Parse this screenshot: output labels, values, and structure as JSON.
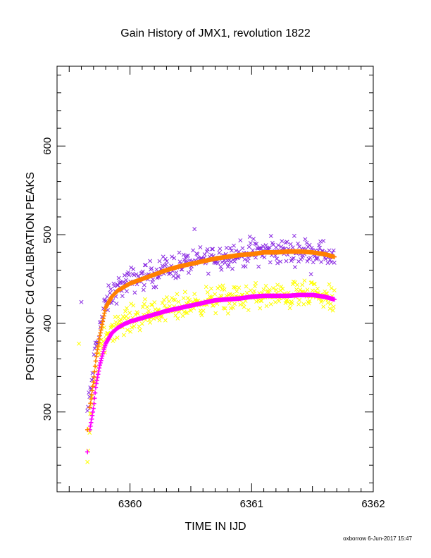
{
  "chart_data": {
    "type": "scatter",
    "title": "Gain History of JMX1, revolution 1822",
    "xlabel": "TIME IN IJD",
    "ylabel": "POSITION OF Cd CALIBRATION PEAKS",
    "xlim": [
      6359.4,
      6362.0
    ],
    "ylim": [
      210,
      690
    ],
    "x_ticks": [
      6360,
      6361,
      6362
    ],
    "y_ticks": [
      300,
      400,
      500,
      600
    ],
    "x_tick_labels": [
      "6360",
      "6361",
      "6362"
    ],
    "y_tick_labels": [
      "300",
      "400",
      "500",
      "600"
    ],
    "grid": false,
    "legend": "none",
    "series": [
      {
        "marker": "x",
        "color": "#8a2be2",
        "noise": 9,
        "x": [
          6359.6,
          6359.65,
          6359.67,
          6359.7,
          6359.72,
          6359.75,
          6359.78,
          6359.8,
          6359.85,
          6359.9,
          6360.0,
          6360.1,
          6360.2,
          6360.3,
          6360.4,
          6360.5,
          6360.6,
          6360.7,
          6360.8,
          6360.9,
          6361.0,
          6361.1,
          6361.2,
          6361.3,
          6361.4,
          6361.5,
          6361.6,
          6361.68
        ],
        "y": [
          424,
          300,
          318,
          350,
          375,
          395,
          410,
          422,
          432,
          440,
          448,
          452,
          457,
          462,
          466,
          469,
          472,
          475,
          477,
          478,
          480,
          481,
          481,
          482,
          482,
          481,
          479,
          476
        ]
      },
      {
        "marker": "x",
        "color": "#ffff00",
        "noise": 9,
        "x": [
          6359.58,
          6359.65,
          6359.67,
          6359.7,
          6359.72,
          6359.75,
          6359.78,
          6359.8,
          6359.85,
          6359.9,
          6360.0,
          6360.1,
          6360.2,
          6360.3,
          6360.4,
          6360.5,
          6360.6,
          6360.7,
          6360.8,
          6360.9,
          6361.0,
          6361.1,
          6361.2,
          6361.3,
          6361.4,
          6361.5,
          6361.6,
          6361.68
        ],
        "y": [
          377,
          245,
          285,
          320,
          345,
          365,
          378,
          386,
          395,
          400,
          405,
          408,
          412,
          416,
          419,
          422,
          425,
          427,
          428,
          429,
          430,
          431,
          430,
          431,
          432,
          431,
          429,
          424
        ]
      },
      {
        "marker": "+",
        "color": "#ff00ff",
        "noise": 0,
        "x": [
          6359.65,
          6359.67,
          6359.7,
          6359.72,
          6359.75,
          6359.78,
          6359.8,
          6359.85,
          6359.9,
          6359.95,
          6360.0,
          6360.1,
          6360.2,
          6360.3,
          6360.4,
          6360.5,
          6360.6,
          6360.7,
          6360.8,
          6360.9,
          6361.0,
          6361.1,
          6361.2,
          6361.3,
          6361.4,
          6361.5,
          6361.6,
          6361.68
        ],
        "y": [
          255,
          280,
          305,
          330,
          352,
          368,
          377,
          389,
          395,
          399,
          402,
          406,
          410,
          414,
          417,
          420,
          423,
          426,
          427,
          428,
          430,
          431,
          431,
          431,
          432,
          432,
          430,
          427
        ]
      },
      {
        "marker": "+",
        "color": "#ff8000",
        "noise": 0,
        "x": [
          6359.65,
          6359.67,
          6359.7,
          6359.72,
          6359.75,
          6359.78,
          6359.8,
          6359.85,
          6359.9,
          6359.95,
          6360.0,
          6360.1,
          6360.2,
          6360.3,
          6360.4,
          6360.5,
          6360.6,
          6360.7,
          6360.8,
          6360.9,
          6361.0,
          6361.1,
          6361.2,
          6361.3,
          6361.4,
          6361.5,
          6361.6,
          6361.68
        ],
        "y": [
          280,
          305,
          335,
          360,
          385,
          405,
          418,
          430,
          437,
          441,
          445,
          450,
          455,
          460,
          464,
          467,
          470,
          473,
          475,
          477,
          478,
          480,
          480,
          481,
          481,
          480,
          478,
          475
        ]
      }
    ]
  },
  "footer": {
    "credit": "oxborrow  6-Jun-2017 15:47"
  }
}
